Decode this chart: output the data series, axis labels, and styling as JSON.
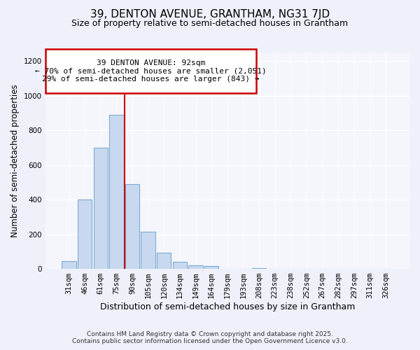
{
  "title": "39, DENTON AVENUE, GRANTHAM, NG31 7JD",
  "subtitle": "Size of property relative to semi-detached houses in Grantham",
  "xlabel": "Distribution of semi-detached houses by size in Grantham",
  "ylabel": "Number of semi-detached properties",
  "bar_labels": [
    "31sqm",
    "46sqm",
    "61sqm",
    "75sqm",
    "90sqm",
    "105sqm",
    "120sqm",
    "134sqm",
    "149sqm",
    "164sqm",
    "179sqm",
    "193sqm",
    "208sqm",
    "223sqm",
    "238sqm",
    "252sqm",
    "267sqm",
    "282sqm",
    "297sqm",
    "311sqm",
    "326sqm"
  ],
  "bar_values": [
    45,
    400,
    700,
    890,
    490,
    215,
    95,
    40,
    22,
    15,
    0,
    0,
    5,
    1,
    0,
    0,
    0,
    0,
    0,
    0,
    2
  ],
  "bar_color": "#c8d8ee",
  "bar_edgecolor": "#7badd4",
  "property_line_label": "39 DENTON AVENUE: 92sqm",
  "annotation_smaller": "← 70% of semi-detached houses are smaller (2,051)",
  "annotation_larger": "29% of semi-detached houses are larger (843) →",
  "vline_color": "#cc0000",
  "vline_x_index": 4,
  "ylim": [
    0,
    1250
  ],
  "yticks": [
    0,
    200,
    400,
    600,
    800,
    1000,
    1200
  ],
  "footer_line1": "Contains HM Land Registry data © Crown copyright and database right 2025.",
  "footer_line2": "Contains public sector information licensed under the Open Government Licence v3.0.",
  "bg_color": "#eef1fa",
  "plot_bg_color": "#f4f6fc",
  "title_fontsize": 11,
  "subtitle_fontsize": 9
}
